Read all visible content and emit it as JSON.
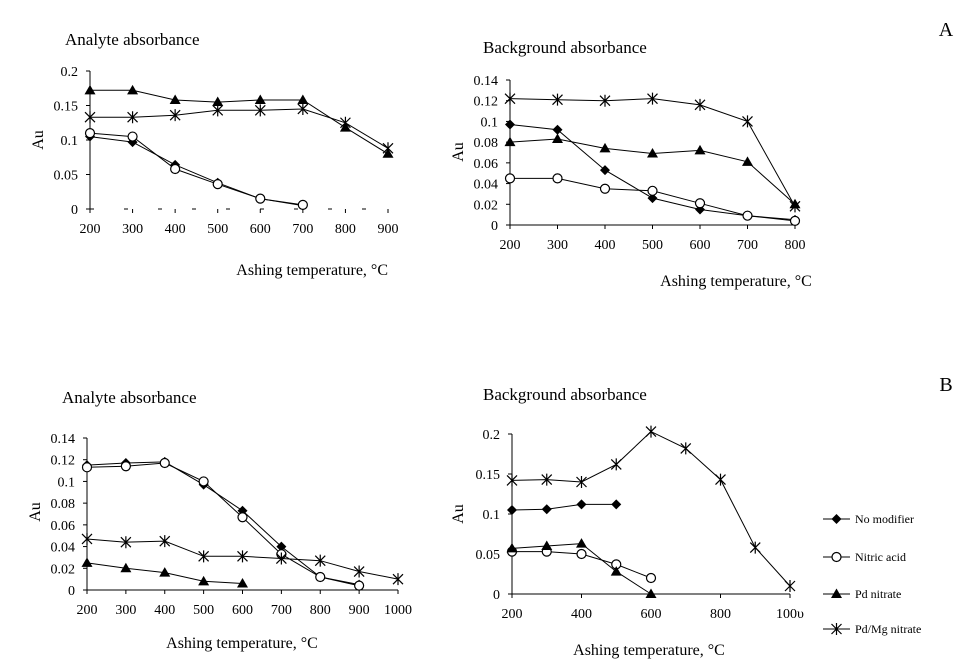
{
  "panel_labels": [
    "A",
    "B"
  ],
  "legend": {
    "entries": [
      {
        "label": "No modifier",
        "marker": "diamond"
      },
      {
        "label": "Nitric acid",
        "marker": "circle-open"
      },
      {
        "label": "Pd nitrate",
        "marker": "triangle"
      },
      {
        "label": "Pd/Mg nitrate",
        "marker": "asterisk"
      }
    ]
  },
  "chart_data": [
    {
      "type": "line",
      "panel": "A",
      "title": "Analyte absorbance",
      "xlabel": "Ashing temperature, °C",
      "ylabel": "Au",
      "xticks": [
        200,
        300,
        400,
        500,
        600,
        700,
        800,
        900
      ],
      "yticks": [
        0,
        0.05,
        0.1,
        0.15,
        0.2
      ],
      "ytick_labels": [
        "0",
        "0.05",
        "0.1",
        "0.15",
        "0.2"
      ],
      "xticks_text": [
        "200",
        "300",
        "400",
        "500",
        "600",
        "700",
        "800",
        "900"
      ],
      "xlim": [
        200,
        900
      ],
      "ylim": [
        0,
        0.2
      ],
      "series": [
        {
          "name": "No modifier",
          "marker": "diamond",
          "x": [
            200,
            300,
            400,
            500,
            600,
            700
          ],
          "y": [
            0.105,
            0.097,
            0.064,
            0.038,
            0.015,
            0.005
          ]
        },
        {
          "name": "Nitric acid",
          "marker": "circle-open",
          "x": [
            200,
            300,
            400,
            500,
            600,
            700
          ],
          "y": [
            0.11,
            0.105,
            0.058,
            0.036,
            0.015,
            0.006
          ]
        },
        {
          "name": "Pd nitrate",
          "marker": "triangle",
          "x": [
            200,
            300,
            400,
            500,
            600,
            700,
            800,
            900
          ],
          "y": [
            0.172,
            0.172,
            0.158,
            0.155,
            0.158,
            0.158,
            0.118,
            0.08
          ]
        },
        {
          "name": "Pd/Mg nitrate",
          "marker": "asterisk",
          "x": [
            200,
            300,
            400,
            500,
            600,
            700,
            800,
            900
          ],
          "y": [
            0.133,
            0.133,
            0.136,
            0.143,
            0.143,
            0.145,
            0.125,
            0.088
          ]
        }
      ]
    },
    {
      "type": "line",
      "panel": "A",
      "title": "Background absorbance",
      "xlabel": "Ashing temperature, °C",
      "ylabel": "Au",
      "xticks": [
        200,
        300,
        400,
        500,
        600,
        700,
        800
      ],
      "yticks": [
        0,
        0.02,
        0.04,
        0.06,
        0.08,
        0.1,
        0.12,
        0.14
      ],
      "ytick_labels": [
        "0",
        "0.02",
        "0.04",
        "0.06",
        "0.08",
        "0.1",
        "0.12",
        "0.14"
      ],
      "xticks_text": [
        "200",
        "300",
        "400",
        "500",
        "600",
        "700",
        "800"
      ],
      "xlim": [
        200,
        800
      ],
      "ylim": [
        0,
        0.14
      ],
      "series": [
        {
          "name": "No modifier",
          "marker": "diamond",
          "x": [
            200,
            300,
            400,
            500,
            600,
            700,
            800
          ],
          "y": [
            0.097,
            0.092,
            0.053,
            0.026,
            0.015,
            0.009,
            0.005
          ]
        },
        {
          "name": "Nitric acid",
          "marker": "circle-open",
          "x": [
            200,
            300,
            400,
            500,
            600,
            700,
            800
          ],
          "y": [
            0.045,
            0.045,
            0.035,
            0.033,
            0.021,
            0.009,
            0.004
          ]
        },
        {
          "name": "Pd nitrate",
          "marker": "triangle",
          "x": [
            200,
            300,
            400,
            500,
            600,
            700,
            800
          ],
          "y": [
            0.08,
            0.083,
            0.074,
            0.069,
            0.072,
            0.061,
            0.02
          ]
        },
        {
          "name": "Pd/Mg nitrate",
          "marker": "asterisk",
          "x": [
            200,
            300,
            400,
            500,
            600,
            700,
            800
          ],
          "y": [
            0.122,
            0.121,
            0.12,
            0.122,
            0.116,
            0.1,
            0.018
          ]
        }
      ]
    },
    {
      "type": "line",
      "panel": "B",
      "title": "Analyte absorbance",
      "xlabel": "Ashing temperature, °C",
      "ylabel": "Au",
      "xticks": [
        200,
        300,
        400,
        500,
        600,
        700,
        800,
        900,
        1000
      ],
      "yticks": [
        0,
        0.02,
        0.04,
        0.06,
        0.08,
        0.1,
        0.12,
        0.14
      ],
      "ytick_labels": [
        "0",
        "0.02",
        "0.04",
        "0.06",
        "0.08",
        "0.1",
        "0.12",
        "0.14"
      ],
      "xticks_text": [
        "200",
        "300",
        "400",
        "500",
        "600",
        "700",
        "800",
        "900",
        "1000"
      ],
      "xlim": [
        200,
        1000
      ],
      "ylim": [
        0,
        0.14
      ],
      "series": [
        {
          "name": "No modifier",
          "marker": "diamond",
          "x": [
            200,
            300,
            400,
            500,
            600,
            700,
            800,
            900
          ],
          "y": [
            0.115,
            0.117,
            0.118,
            0.097,
            0.073,
            0.04,
            0.012,
            0.005
          ]
        },
        {
          "name": "Nitric acid",
          "marker": "circle-open",
          "x": [
            200,
            300,
            400,
            500,
            600,
            700,
            800,
            900
          ],
          "y": [
            0.113,
            0.114,
            0.117,
            0.1,
            0.067,
            0.033,
            0.012,
            0.004
          ]
        },
        {
          "name": "Pd nitrate",
          "marker": "triangle",
          "x": [
            200,
            300,
            400,
            500,
            600
          ],
          "y": [
            0.025,
            0.02,
            0.016,
            0.008,
            0.006
          ]
        },
        {
          "name": "Pd/Mg nitrate",
          "marker": "asterisk",
          "x": [
            200,
            300,
            400,
            500,
            600,
            700,
            800,
            900,
            1000
          ],
          "y": [
            0.047,
            0.044,
            0.045,
            0.031,
            0.031,
            0.029,
            0.027,
            0.017,
            0.01
          ]
        }
      ]
    },
    {
      "type": "line",
      "panel": "B",
      "title": "Background absorbance",
      "xlabel": "Ashing temperature, °C",
      "ylabel": "Au",
      "xticks": [
        200,
        400,
        600,
        800,
        1000
      ],
      "yticks": [
        0,
        0.05,
        0.1,
        0.15,
        0.2
      ],
      "ytick_labels": [
        "0",
        "0.05",
        "0.1",
        "0.15",
        "0.2"
      ],
      "xticks_text": [
        "200",
        "400",
        "600",
        "800",
        "100υ"
      ],
      "xlim": [
        200,
        1000
      ],
      "ylim": [
        0,
        0.2
      ],
      "series": [
        {
          "name": "No modifier",
          "marker": "diamond",
          "x": [
            200,
            300,
            400,
            500
          ],
          "y": [
            0.105,
            0.106,
            0.112,
            0.112
          ]
        },
        {
          "name": "Nitric acid",
          "marker": "circle-open",
          "x": [
            200,
            300,
            400,
            500,
            600
          ],
          "y": [
            0.053,
            0.053,
            0.05,
            0.037,
            0.02
          ]
        },
        {
          "name": "Pd nitrate",
          "marker": "triangle",
          "x": [
            200,
            300,
            400,
            500,
            600
          ],
          "y": [
            0.057,
            0.06,
            0.063,
            0.028,
            0.0
          ]
        },
        {
          "name": "Pd/Mg nitrate",
          "marker": "asterisk",
          "x": [
            200,
            300,
            400,
            500,
            600,
            700,
            800,
            900,
            1000
          ],
          "y": [
            0.142,
            0.143,
            0.14,
            0.162,
            0.203,
            0.182,
            0.143,
            0.058,
            0.01
          ]
        }
      ]
    }
  ]
}
